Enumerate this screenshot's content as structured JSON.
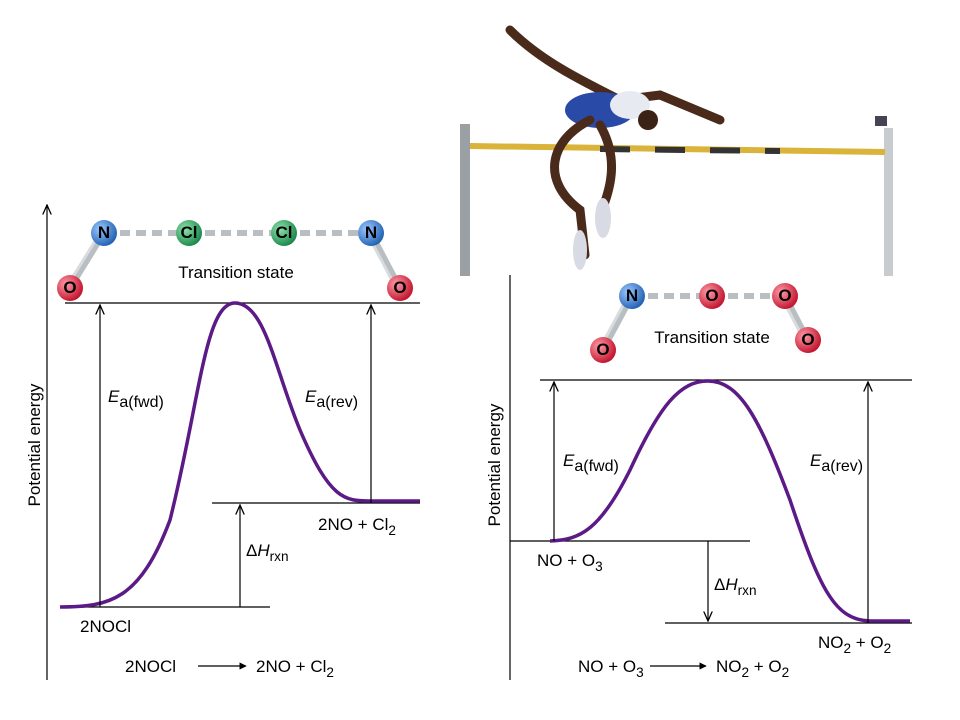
{
  "left": {
    "y_axis_label": "Potential energy",
    "transition_state": "Transition state",
    "atoms": [
      "N",
      "Cl",
      "Cl",
      "N",
      "O",
      "O"
    ],
    "ea_fwd": {
      "runs": [
        {
          "t": "E",
          "italic": true
        },
        {
          "t": "a(fwd)",
          "sub": true
        }
      ]
    },
    "ea_rev": {
      "runs": [
        {
          "t": "E",
          "italic": true
        },
        {
          "t": "a(rev)",
          "sub": true
        }
      ]
    },
    "delta_h": {
      "runs": [
        {
          "t": "Δ"
        },
        {
          "t": "H",
          "italic": true
        },
        {
          "t": "rxn",
          "sub": true
        }
      ]
    },
    "reactants": {
      "runs": [
        {
          "t": "2NOCl"
        }
      ]
    },
    "products": {
      "runs": [
        {
          "t": "2NO + Cl"
        },
        {
          "t": "2",
          "sub": true
        }
      ]
    },
    "equation_left": {
      "runs": [
        {
          "t": "2NOCl"
        }
      ]
    },
    "equation_right": {
      "runs": [
        {
          "t": "2NO + Cl"
        },
        {
          "t": "2",
          "sub": true
        }
      ]
    }
  },
  "right": {
    "y_axis_label": "Potential energy",
    "transition_state": "Transition state",
    "atoms": [
      "N",
      "O",
      "O",
      "O",
      "O"
    ],
    "ea_fwd": {
      "runs": [
        {
          "t": "E",
          "italic": true
        },
        {
          "t": "a(fwd)",
          "sub": true
        }
      ]
    },
    "ea_rev": {
      "runs": [
        {
          "t": "E",
          "italic": true
        },
        {
          "t": "a(rev)",
          "sub": true
        }
      ]
    },
    "delta_h": {
      "runs": [
        {
          "t": "Δ"
        },
        {
          "t": "H",
          "italic": true
        },
        {
          "t": "rxn",
          "sub": true
        }
      ]
    },
    "reactants": {
      "runs": [
        {
          "t": "NO + O"
        },
        {
          "t": "3",
          "sub": true
        }
      ]
    },
    "products": {
      "runs": [
        {
          "t": "NO"
        },
        {
          "t": "2",
          "sub": true
        },
        {
          "t": "  + O"
        },
        {
          "t": "2",
          "sub": true
        }
      ]
    },
    "equation_left": {
      "runs": [
        {
          "t": "NO + O"
        },
        {
          "t": "3",
          "sub": true
        }
      ]
    },
    "equation_right": {
      "runs": [
        {
          "t": "NO"
        },
        {
          "t": "2",
          "sub": true
        },
        {
          "t": " + O"
        },
        {
          "t": "2",
          "sub": true
        }
      ]
    }
  }
}
